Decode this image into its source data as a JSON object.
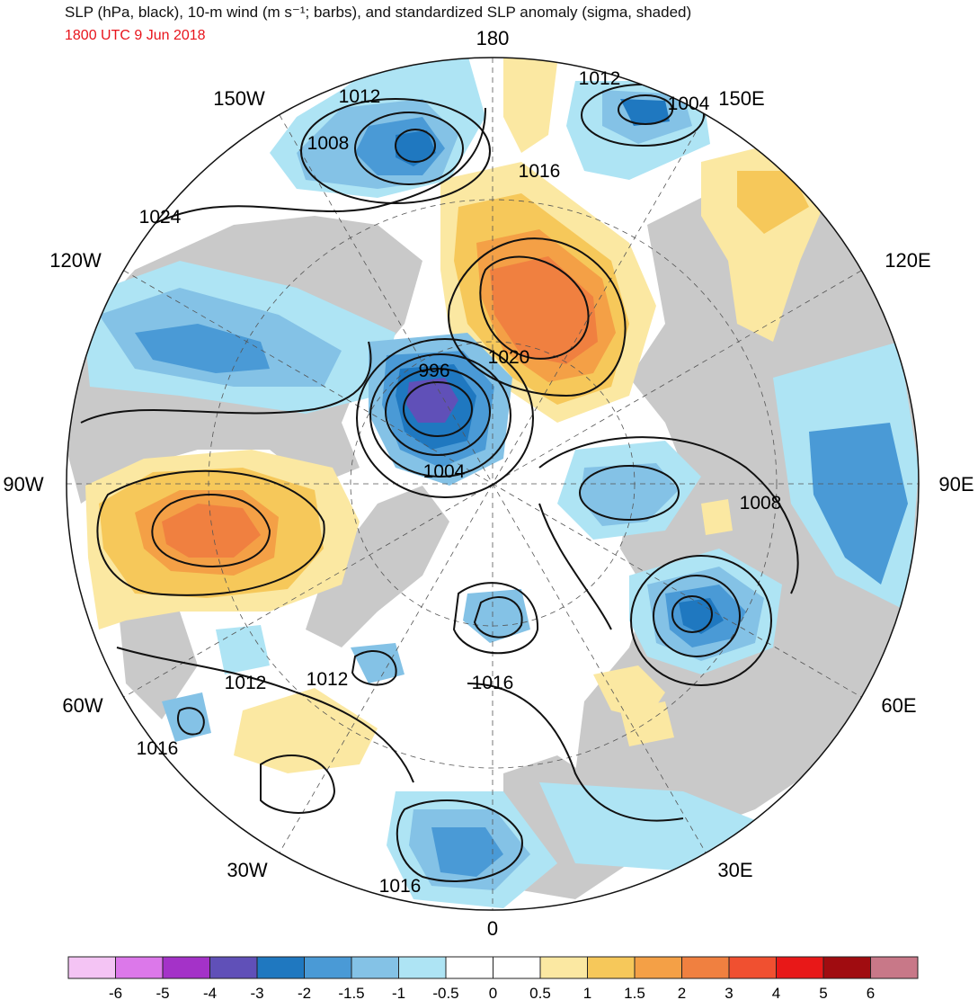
{
  "header": {
    "title": "SLP (hPa, black), 10-m wind (m s⁻¹; barbs), and standardized SLP anomaly (sigma, shaded)",
    "datetime": "1800 UTC 9 Jun 2018",
    "datetime_color": "#e8141c"
  },
  "map": {
    "projection": "north-polar-stereographic",
    "center_label": "0",
    "longitude_labels": [
      {
        "id": "180",
        "text": "180",
        "lon": 180
      },
      {
        "id": "150E",
        "text": "150E",
        "lon": 150
      },
      {
        "id": "120E",
        "text": "120E",
        "lon": 120
      },
      {
        "id": "90E",
        "text": "90E",
        "lon": 90
      },
      {
        "id": "60E",
        "text": "60E",
        "lon": 60
      },
      {
        "id": "30E",
        "text": "30E",
        "lon": 30
      },
      {
        "id": "0",
        "text": "0",
        "lon": 0
      },
      {
        "id": "30W",
        "text": "30W",
        "lon": -30
      },
      {
        "id": "60W",
        "text": "60W",
        "lon": -60
      },
      {
        "id": "90W",
        "text": "90W",
        "lon": -90
      },
      {
        "id": "120W",
        "text": "120W",
        "lon": -120
      },
      {
        "id": "150W",
        "text": "150W",
        "lon": -150
      }
    ],
    "contour_labels": [
      {
        "id": "c1012a",
        "text": "1012"
      },
      {
        "id": "c1008a",
        "text": "1008"
      },
      {
        "id": "c1024",
        "text": "1024"
      },
      {
        "id": "c1012b",
        "text": "1012"
      },
      {
        "id": "c1004a",
        "text": "1004"
      },
      {
        "id": "c1016a",
        "text": "1016"
      },
      {
        "id": "c1020",
        "text": "1020"
      },
      {
        "id": "c996",
        "text": "996"
      },
      {
        "id": "c1004b",
        "text": "1004"
      },
      {
        "id": "c1008b",
        "text": "1008"
      },
      {
        "id": "c1012c",
        "text": "1012"
      },
      {
        "id": "c1012d",
        "text": "1012"
      },
      {
        "id": "c1016b",
        "text": "1016"
      },
      {
        "id": "c1016c",
        "text": "1016"
      },
      {
        "id": "c1016d",
        "text": "1016"
      }
    ],
    "colors": {
      "land": "#c9c9c9",
      "ocean": "#ffffff",
      "contour": "#111111"
    }
  },
  "colorbar": {
    "tick_labels": [
      "-6",
      "-5",
      "-4",
      "-3",
      "-2",
      "-1.5",
      "-1",
      "-0.5",
      "0",
      "0.5",
      "1",
      "1.5",
      "2",
      "3",
      "4",
      "5",
      "6"
    ],
    "colors": [
      "#f4c4f4",
      "#dc78ea",
      "#a432c8",
      "#6050b8",
      "#1f78c0",
      "#4a9ad6",
      "#84c2e6",
      "#aee4f4",
      "#ffffff",
      "#ffffff",
      "#fbe8a2",
      "#f6c85a",
      "#f4a046",
      "#f08040",
      "#f05030",
      "#e81818",
      "#a00c10",
      "#c87888"
    ]
  }
}
